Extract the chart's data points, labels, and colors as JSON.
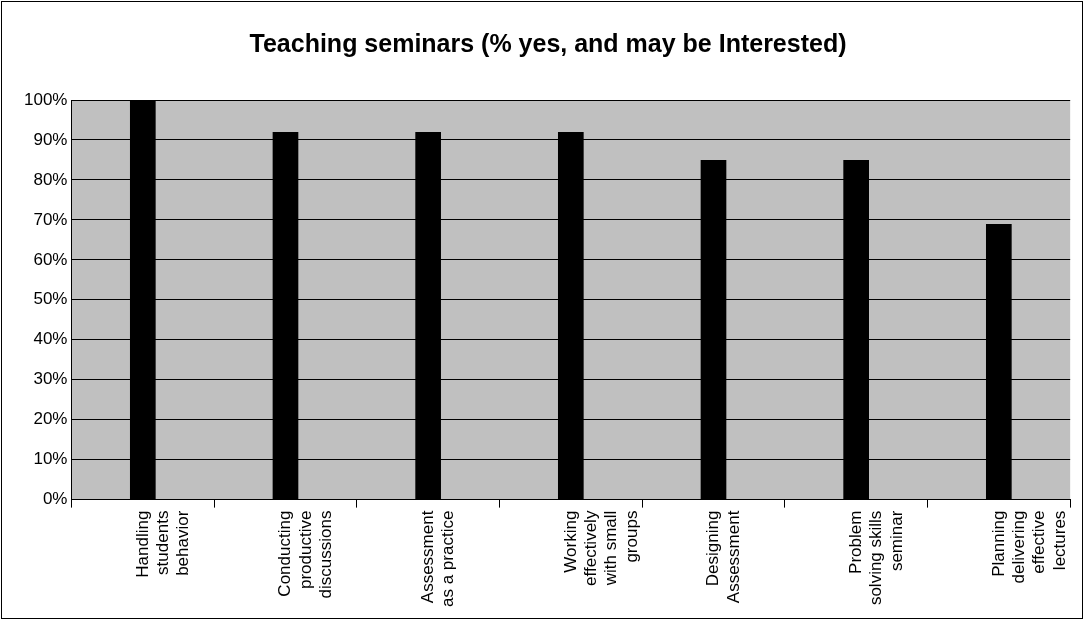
{
  "chart_data": {
    "type": "bar",
    "title": "Teaching seminars (% yes, and may be Interested)",
    "categories": [
      "Handling students behavior",
      "Conducting productive discussions",
      "Assessment as a practice",
      "Working effectively with small groups",
      "Designing Assessment",
      "Problem solving skills seminar",
      "Planning delivering effective lectures"
    ],
    "values": [
      100,
      92,
      92,
      92,
      85,
      85,
      69
    ],
    "color": "#000000",
    "ylim": [
      0,
      100
    ],
    "yticks": [
      {
        "value": 0,
        "label": "0%"
      },
      {
        "value": 10,
        "label": "10%"
      },
      {
        "value": 20,
        "label": "20%"
      },
      {
        "value": 30,
        "label": "30%"
      },
      {
        "value": 40,
        "label": "40%"
      },
      {
        "value": 50,
        "label": "50%"
      },
      {
        "value": 60,
        "label": "60%"
      },
      {
        "value": 70,
        "label": "70%"
      },
      {
        "value": 80,
        "label": "80%"
      },
      {
        "value": 90,
        "label": "90%"
      },
      {
        "value": 100,
        "label": "100%"
      }
    ],
    "grid": "y",
    "legend": false
  }
}
